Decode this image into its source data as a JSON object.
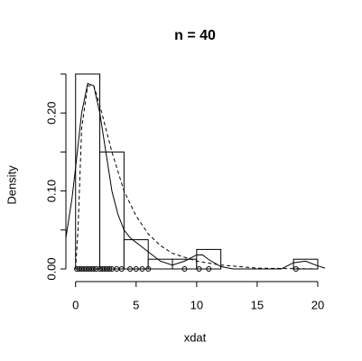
{
  "chart_data": {
    "type": "histogram",
    "title": "n = 40",
    "xlabel": "xdat",
    "ylabel": "Density",
    "bins": [
      0,
      2,
      4,
      6,
      8,
      10,
      12,
      14,
      16,
      18,
      20
    ],
    "values": [
      0.25,
      0.15,
      0.0375,
      0.0125,
      0.0125,
      0.025,
      0,
      0,
      0,
      0.0125
    ],
    "color": "#ffffff",
    "lines": [
      {
        "style": "solid",
        "x": [
          -0.8,
          -0.3,
          0,
          0.5,
          1,
          1.5,
          2,
          2.5,
          3,
          3.5,
          4,
          4.5,
          5,
          6,
          7,
          8,
          9,
          10,
          10.5,
          11,
          12,
          13,
          17,
          18,
          19,
          20,
          20.6
        ],
        "values": [
          0.04,
          0.09,
          0.13,
          0.2,
          0.238,
          0.235,
          0.2,
          0.15,
          0.1,
          0.07,
          0.05,
          0.04,
          0.034,
          0.022,
          0.01,
          0.005,
          0.01,
          0.018,
          0.018,
          0.012,
          0.003,
          0,
          0,
          0.008,
          0.01,
          0.004,
          0.001
        ]
      },
      {
        "style": "dashed",
        "x": [
          0,
          0.2,
          0.5,
          1,
          1.5,
          2,
          3,
          4,
          5,
          6,
          7,
          8,
          10,
          12,
          15,
          20
        ],
        "values": [
          0,
          0.05,
          0.18,
          0.235,
          0.235,
          0.21,
          0.15,
          0.1,
          0.068,
          0.045,
          0.03,
          0.02,
          0.01,
          0.005,
          0.001,
          0
        ]
      }
    ],
    "points": {
      "x": [
        0.1,
        0.3,
        0.5,
        0.7,
        0.9,
        1.1,
        1.3,
        1.5,
        1.7,
        2.0,
        2.2,
        2.4,
        2.6,
        2.8,
        3.0,
        3.4,
        3.8,
        4.5,
        5.0,
        5.5,
        6.0,
        9.0,
        10.2,
        11.0,
        18.2
      ],
      "values": [
        0,
        0,
        0,
        0,
        0,
        0,
        0,
        0,
        0,
        0,
        0,
        0,
        0,
        0,
        0,
        0,
        0,
        0,
        0,
        0,
        0,
        0,
        0,
        0,
        0
      ]
    },
    "xlim": [
      -0.8,
      20.6
    ],
    "ylim": [
      0,
      0.25
    ],
    "xticks": [
      0,
      5,
      10,
      15,
      20
    ],
    "yticks": [
      {
        "value": 0,
        "label": "0.00"
      },
      {
        "value": 0.1,
        "label": "0.10"
      },
      {
        "value": 0.2,
        "label": "0.20"
      }
    ],
    "yminorticks": [
      0.05,
      0.15,
      0.25
    ]
  }
}
